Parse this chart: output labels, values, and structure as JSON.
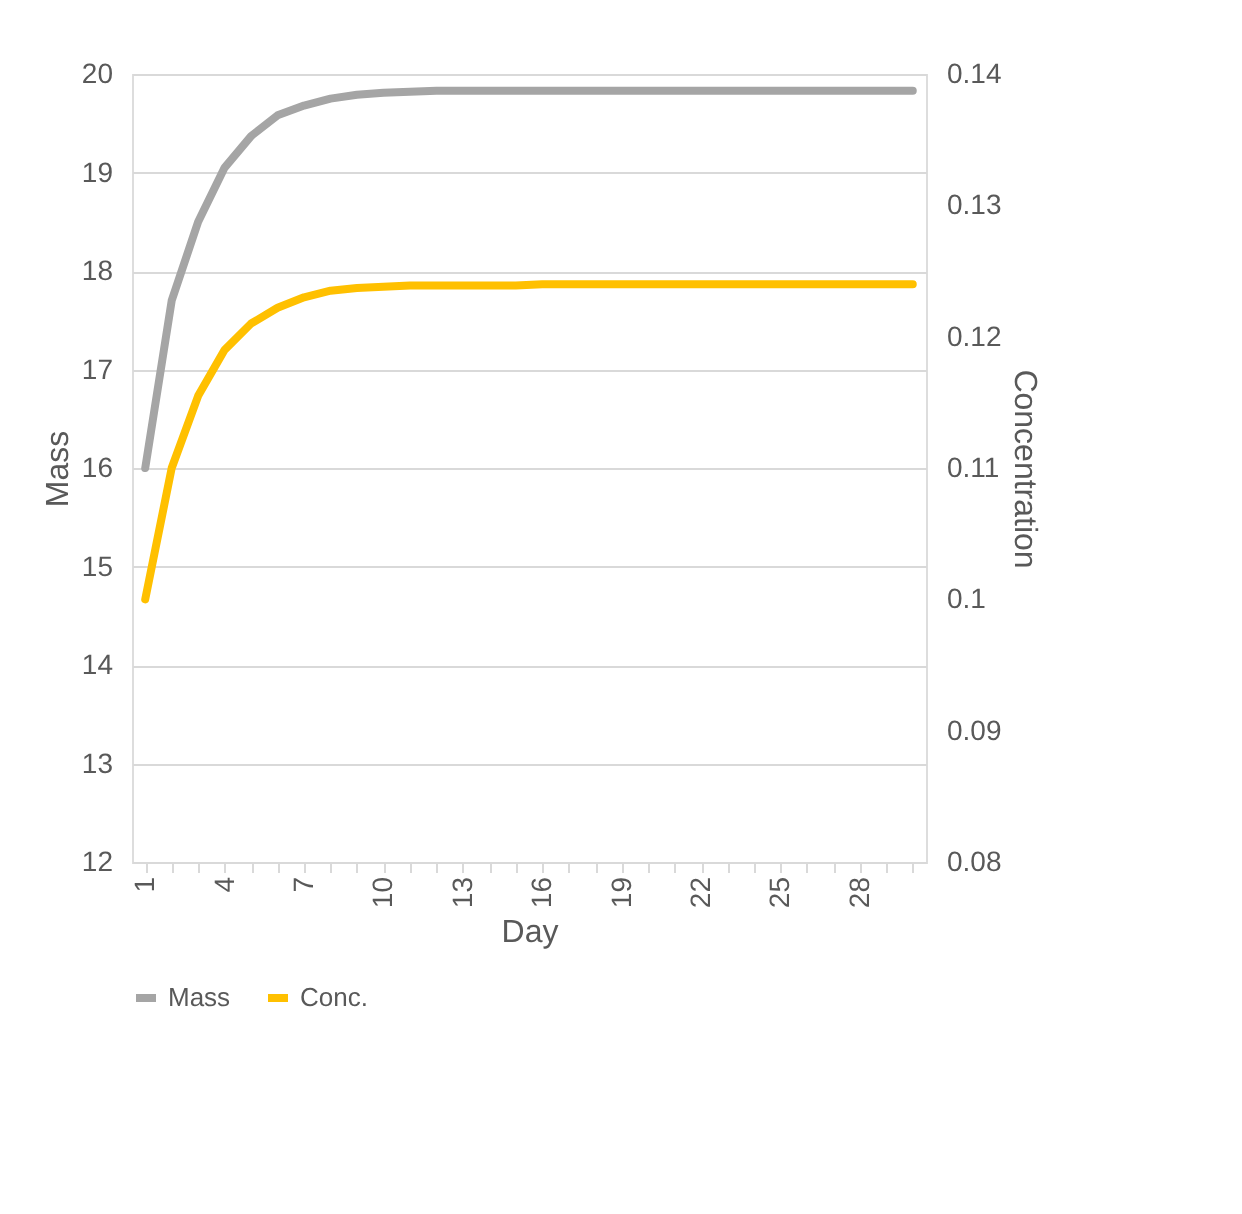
{
  "chart_data": {
    "type": "line",
    "categories": [
      "1",
      null,
      null,
      "4",
      null,
      null,
      "7",
      null,
      null,
      "10",
      null,
      null,
      "13",
      null,
      null,
      "16",
      null,
      null,
      "19",
      null,
      null,
      "22",
      null,
      null,
      "25",
      null,
      null,
      "28",
      null,
      null
    ],
    "xlabel": "Day",
    "ylabel": "Mass",
    "y2label": "Concentration",
    "series": [
      {
        "name": "Mass",
        "color": "#a5a5a5",
        "values": [
          16.0,
          17.7,
          18.5,
          19.05,
          19.37,
          19.58,
          19.68,
          19.75,
          19.79,
          19.81,
          19.82,
          19.83,
          19.83,
          19.83,
          19.83,
          19.83,
          19.83,
          19.83,
          19.83,
          19.83,
          19.83,
          19.83,
          19.83,
          19.83,
          19.83,
          19.83,
          19.83,
          19.83,
          19.83,
          19.83
        ]
      },
      {
        "name": "Conc.",
        "color": "#ffc000",
        "axis": "y2",
        "values": [
          0.1,
          0.11,
          0.1155,
          0.119,
          0.121,
          0.1222,
          0.123,
          0.1235,
          0.1237,
          0.1238,
          0.1239,
          0.1239,
          0.1239,
          0.1239,
          0.1239,
          0.124,
          0.124,
          0.124,
          0.124,
          0.124,
          0.124,
          0.124,
          0.124,
          0.124,
          0.124,
          0.124,
          0.124,
          0.124,
          0.124,
          0.124
        ]
      }
    ],
    "ylim": [
      12,
      20
    ],
    "yticks": [
      12,
      13,
      14,
      15,
      16,
      17,
      18,
      19,
      20
    ],
    "y2lim": [
      0.08,
      0.14
    ],
    "y2ticks": [
      0.08,
      0.09,
      0.1,
      0.11,
      0.12,
      0.13,
      0.14
    ],
    "grid": "y",
    "legend": "bottom",
    "line_style": "solid",
    "marker": "none"
  }
}
